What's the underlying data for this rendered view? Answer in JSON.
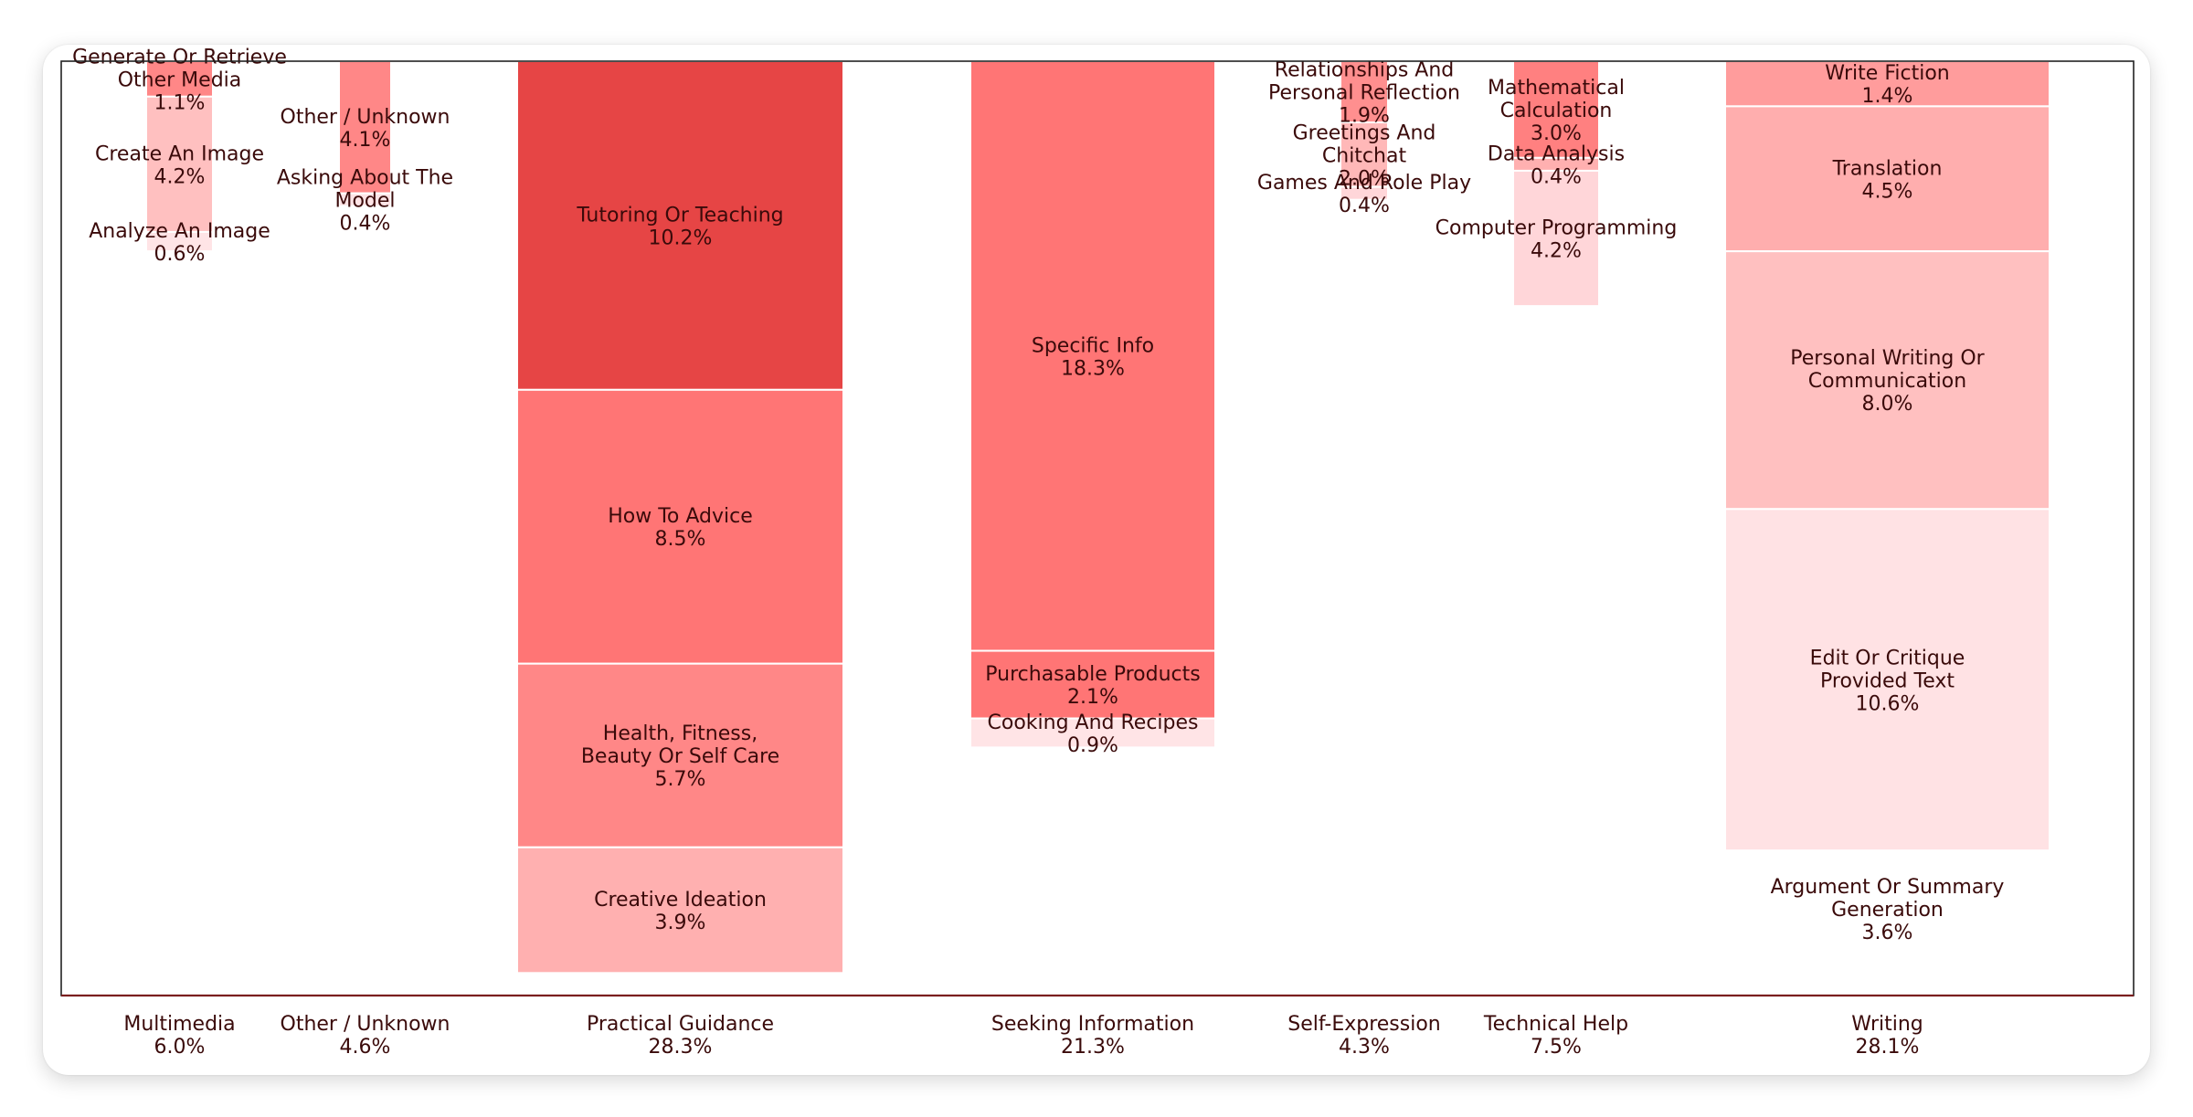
{
  "chart_data": {
    "type": "bar",
    "subtype": "marimekko",
    "title": "",
    "xlabel": "",
    "ylabel": "",
    "grid": false,
    "legend": "none",
    "colors": {
      "darkest": "#E64545",
      "dark": "#FF7575",
      "medium": "#FF8787",
      "light": "#FFB0B0",
      "lighter": "#FFC0C0",
      "lightest": "#FFD6D9",
      "palest": "#FFE4E6",
      "text": "#3A0A0A",
      "axis": "#5A1A1A"
    },
    "columns": [
      {
        "name": "Multimedia",
        "share": "6.0%",
        "width": 6.0,
        "segments": [
          {
            "label": "Generate Or Retrieve Other Media",
            "value": 1.1,
            "text": "1.1%",
            "color": "#FF8787"
          },
          {
            "label": "Create An Image",
            "value": 4.2,
            "text": "4.2%",
            "color": "#FFC0C0"
          },
          {
            "label": "Analyze An Image",
            "value": 0.6,
            "text": "0.6%",
            "color": "#FFE4E6"
          }
        ]
      },
      {
        "name": "Other / Unknown",
        "share": "4.6%",
        "width": 4.6,
        "segments": [
          {
            "label": "Other / Unknown",
            "value": 4.1,
            "text": "4.1%",
            "color": "#FF8787"
          },
          {
            "label": "Asking About The Model",
            "value": 0.4,
            "text": "0.4%",
            "color": "#FFE4E6"
          }
        ]
      },
      {
        "name": "Practical Guidance",
        "share": "28.3%",
        "width": 28.3,
        "segments": [
          {
            "label": "Tutoring Or Teaching",
            "value": 10.2,
            "text": "10.2%",
            "color": "#E64545"
          },
          {
            "label": "How To Advice",
            "value": 8.5,
            "text": "8.5%",
            "color": "#FF7575"
          },
          {
            "label": "Health, Fitness, Beauty Or Self Care",
            "value": 5.7,
            "text": "5.7%",
            "color": "#FF8787"
          },
          {
            "label": "Creative Ideation",
            "value": 3.9,
            "text": "3.9%",
            "color": "#FFB0B0"
          }
        ]
      },
      {
        "name": "Seeking Information",
        "share": "21.3%",
        "width": 21.3,
        "segments": [
          {
            "label": "Specific Info",
            "value": 18.3,
            "text": "18.3%",
            "color": "#FF7575"
          },
          {
            "label": "Purchasable Products",
            "value": 2.1,
            "text": "2.1%",
            "color": "#FF7575"
          },
          {
            "label": "Cooking And Recipes",
            "value": 0.9,
            "text": "0.9%",
            "color": "#FFE4E6"
          }
        ]
      },
      {
        "name": "Self-Expression",
        "share": "4.3%",
        "width": 4.3,
        "segments": [
          {
            "label": "Relationships And Personal Reflection",
            "value": 1.9,
            "text": "1.9%",
            "color": "#FF8F8F"
          },
          {
            "label": "Greetings And Chitchat",
            "value": 2.0,
            "text": "2.0%",
            "color": "#FFB8B8"
          },
          {
            "label": "Games And Role Play",
            "value": 0.4,
            "text": "0.4%",
            "color": "#FFD6D9"
          }
        ]
      },
      {
        "name": "Technical Help",
        "share": "7.5%",
        "width": 7.5,
        "segments": [
          {
            "label": "Mathematical Calculation",
            "value": 3.0,
            "text": "3.0%",
            "color": "#FF8080"
          },
          {
            "label": "Data Analysis",
            "value": 0.4,
            "text": "0.4%",
            "color": "#FFB0B0"
          },
          {
            "label": "Computer Programming",
            "value": 4.2,
            "text": "4.2%",
            "color": "#FFD6D9"
          }
        ]
      },
      {
        "name": "Writing",
        "share": "28.1%",
        "width": 28.1,
        "segments": [
          {
            "label": "Write Fiction",
            "value": 1.4,
            "text": "1.4%",
            "color": "#FF9C9C"
          },
          {
            "label": "Translation",
            "value": 4.5,
            "text": "4.5%",
            "color": "#FFAEAE"
          },
          {
            "label": "Personal Writing Or Communication",
            "value": 8.0,
            "text": "8.0%",
            "color": "#FFC0C0"
          },
          {
            "label": "Edit Or Critique Provided Text",
            "value": 10.6,
            "text": "10.6%",
            "color": "#FFE2E4"
          },
          {
            "label": "Argument Or Summary Generation",
            "value": 3.6,
            "text": "3.6%",
            "color": "#FFFFFF"
          }
        ]
      }
    ]
  }
}
